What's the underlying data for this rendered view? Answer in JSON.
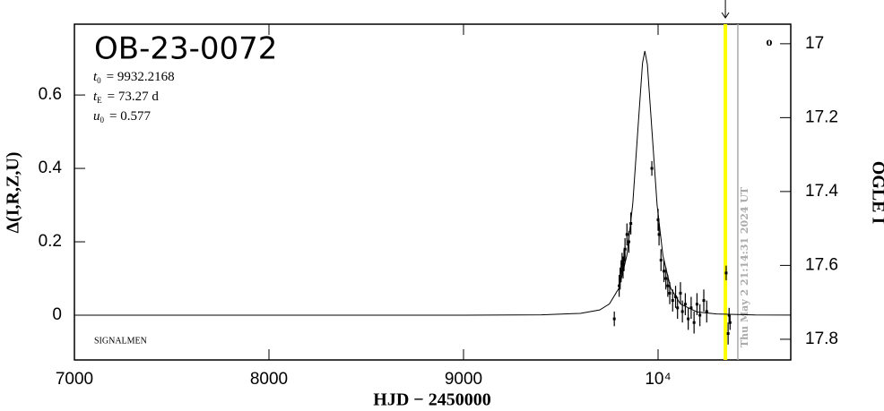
{
  "chart_data": {
    "type": "lightcurve",
    "title": "OB-23-0072",
    "params": [
      {
        "symbol": "t",
        "sub": "0",
        "text": "= 9932.2168"
      },
      {
        "symbol": "t",
        "sub": "E",
        "text": "= 73.27  d"
      },
      {
        "symbol": "u",
        "sub": "0",
        "text": "= 0.577"
      }
    ],
    "observer": "SIGNALMEN",
    "corner_mark": "o",
    "x_label": "HJD − 2450000",
    "y_label": "Δ(I,R,Z,U)",
    "y2_label": "OGLE I",
    "date_stamp": "Thu May  2 21:14:31 2024 UT",
    "xlim": [
      7000,
      10682
    ],
    "xticks": [
      7000,
      8000,
      9000,
      {
        "value": 10000,
        "label": "10⁴"
      }
    ],
    "ylim": [
      -0.122,
      0.793
    ],
    "yticks": [
      0,
      0.2,
      0.4,
      0.6
    ],
    "y2lim": [
      16.947,
      17.856
    ],
    "y2_inverted": true,
    "y2ticks": [
      17,
      17.2,
      17.4,
      17.6,
      17.8
    ],
    "model": {
      "x": [
        7000,
        9000,
        9400,
        9600,
        9700,
        9750,
        9800,
        9840,
        9870,
        9900,
        9920,
        9932,
        9945,
        9965,
        9995,
        10025,
        10065,
        10115,
        10200,
        10300,
        10500,
        10682
      ],
      "values": [
        0,
        0.0001,
        0.0008,
        0.005,
        0.0143,
        0.0307,
        0.0746,
        0.164,
        0.304,
        0.535,
        0.687,
        0.72,
        0.683,
        0.53,
        0.3,
        0.162,
        0.0735,
        0.0304,
        0.0089,
        0.0033,
        0.0006,
        0.0003
      ],
      "color": "#000000"
    },
    "observations": {
      "x": [
        9775,
        9800,
        9805,
        9810,
        9815,
        9820,
        9825,
        9830,
        9840,
        9850,
        9860,
        9968,
        10000,
        10005,
        10015,
        10030,
        10040,
        10050,
        10060,
        10075,
        10090,
        10100,
        10115,
        10125,
        10140,
        10155,
        10170,
        10185,
        10200,
        10215,
        10235,
        10250,
        10350,
        10360,
        10365,
        10370
      ],
      "values": [
        -0.01,
        0.08,
        0.1,
        0.12,
        0.14,
        0.13,
        0.15,
        0.18,
        0.22,
        0.2,
        0.25,
        0.4,
        0.26,
        0.22,
        0.15,
        0.12,
        0.1,
        0.08,
        0.06,
        0.04,
        0.05,
        0.02,
        0.06,
        0.01,
        0.03,
        -0.01,
        0.02,
        -0.02,
        0.03,
        0,
        0.04,
        0.01,
        0.115,
        -0.05,
        0,
        -0.02
      ],
      "errors": [
        0.02,
        0.03,
        0.03,
        0.03,
        0.03,
        0.03,
        0.03,
        0.03,
        0.03,
        0.03,
        0.03,
        0.02,
        0.03,
        0.03,
        0.03,
        0.03,
        0.03,
        0.03,
        0.03,
        0.03,
        0.03,
        0.03,
        0.03,
        0.03,
        0.03,
        0.03,
        0.03,
        0.03,
        0.03,
        0.03,
        0.03,
        0.03,
        0.02,
        0.03,
        0.02,
        0.02
      ],
      "color": "#000000"
    },
    "markers": {
      "selected": 10346,
      "selected_color": "#ffff00",
      "now": 10410,
      "now_color": "#aaaaaa"
    }
  }
}
